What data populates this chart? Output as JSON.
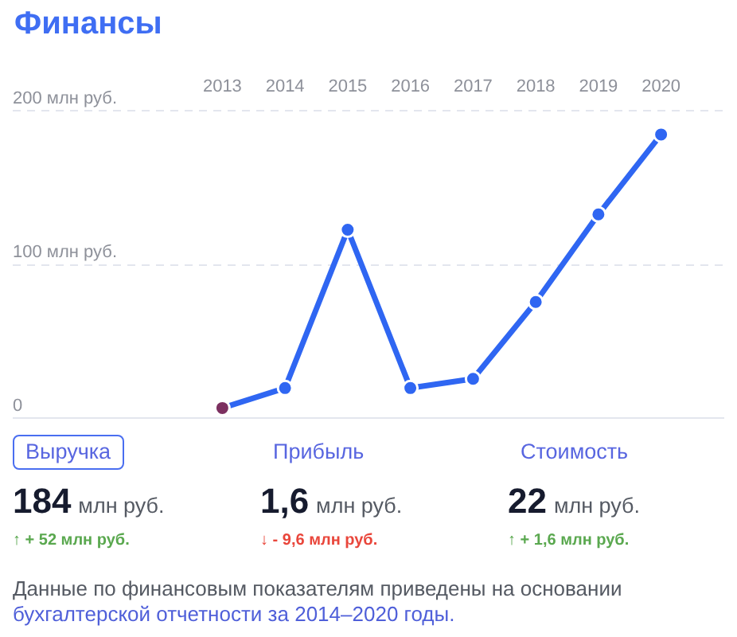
{
  "chart_data": [
    {
      "type": "line",
      "title": "Финансы",
      "categories": [
        "2013",
        "2014",
        "2015",
        "2016",
        "2017",
        "2018",
        "2019",
        "2020"
      ],
      "series": [
        {
          "color": "#2f66f2",
          "colors": [
            "#7c3060",
            "#2f66f2",
            "#2f66f2",
            "#2f66f2",
            "#2f66f2",
            "#2f66f2",
            "#2f66f2",
            "#2f66f2"
          ],
          "values": [
            6,
            19,
            122,
            19,
            25,
            75,
            132,
            184
          ]
        }
      ],
      "ylim": [
        0,
        200
      ],
      "yticks": [
        0,
        {
          "value": 100,
          "label": "100 млн руб."
        },
        {
          "value": 200,
          "label": "200 млн руб."
        }
      ],
      "grid": "y",
      "marker": "circle",
      "line_style": "solid",
      "annotations": [
        "Данные по финансовым показателям приведены на основании",
        "бухгалтерской отчетности за 2014–2020 годы."
      ]
    },
    {
      "type": "other",
      "categories": [
        "Выручка",
        "Прибыль",
        "Стоимость"
      ],
      "series": [
        {
          "color": "#161b2e",
          "values": [
            184,
            1.6,
            22
          ],
          "value_labels": [
            "184 млн руб.",
            "1,6 млн руб.",
            "22 млн руб."
          ]
        },
        {
          "colors": [
            "#5aa84f",
            "#e9463b",
            "#5aa84f"
          ],
          "values": [
            52,
            -9.6,
            1.6
          ],
          "value_labels": [
            "↑ + 52 млн руб.",
            "↓ - 9,6 млн руб.",
            "↑ + 1,6 млн руб."
          ]
        }
      ]
    }
  ]
}
